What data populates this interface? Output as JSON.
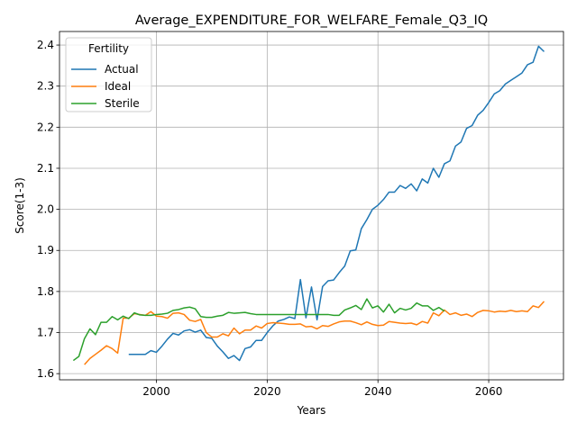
{
  "chart_data": {
    "type": "line",
    "title": "Average_EXPENDITURE_FOR_WELFARE_Female_Q3_IQ",
    "xlabel": "Years",
    "ylabel": "Score(1-3)",
    "xlim": [
      1982.5,
      2073.5
    ],
    "ylim": [
      1.585,
      2.433
    ],
    "xticks": [
      2000,
      2020,
      2040,
      2060
    ],
    "yticks": [
      1.6,
      1.7,
      1.8,
      1.9,
      2.0,
      2.1,
      2.2,
      2.3,
      2.4
    ],
    "xtick_labels": [
      "2000",
      "2020",
      "2040",
      "2060"
    ],
    "ytick_labels": [
      "1.6",
      "1.7",
      "1.8",
      "1.9",
      "2.0",
      "2.1",
      "2.2",
      "2.3",
      "2.4"
    ],
    "grid": true,
    "legend": {
      "title": "Fertility",
      "placement": "upper-left"
    },
    "series": [
      {
        "name": "Actual",
        "color": "#1f77b4",
        "x": [
          1995,
          1996,
          1997,
          1998,
          1999,
          2000,
          2001,
          2002,
          2003,
          2004,
          2005,
          2006,
          2007,
          2008,
          2009,
          2010,
          2011,
          2012,
          2013,
          2014,
          2015,
          2016,
          2017,
          2018,
          2019,
          2020,
          2021,
          2022,
          2023,
          2024,
          2025,
          2026,
          2027,
          2028,
          2029,
          2030,
          2031,
          2032,
          2033,
          2034,
          2035,
          2036,
          2037,
          2038,
          2039,
          2040,
          2041,
          2042,
          2043,
          2044,
          2045,
          2046,
          2047,
          2048,
          2049,
          2050,
          2051,
          2052,
          2053,
          2054,
          2055,
          2056,
          2057,
          2058,
          2059,
          2060,
          2061,
          2062,
          2063,
          2064,
          2065,
          2066,
          2067,
          2068,
          2069,
          2070
        ],
        "y": [
          1.647,
          1.647,
          1.647,
          1.647,
          1.656,
          1.652,
          1.667,
          1.684,
          1.698,
          1.694,
          1.704,
          1.707,
          1.701,
          1.706,
          1.688,
          1.686,
          1.667,
          1.653,
          1.637,
          1.644,
          1.632,
          1.661,
          1.665,
          1.681,
          1.681,
          1.7,
          1.716,
          1.728,
          1.732,
          1.738,
          1.734,
          1.829,
          1.736,
          1.811,
          1.731,
          1.812,
          1.826,
          1.828,
          1.846,
          1.862,
          1.899,
          1.901,
          1.953,
          1.975,
          2.0,
          2.01,
          2.024,
          2.042,
          2.042,
          2.058,
          2.051,
          2.062,
          2.045,
          2.074,
          2.064,
          2.1,
          2.078,
          2.111,
          2.118,
          2.154,
          2.164,
          2.197,
          2.204,
          2.229,
          2.241,
          2.26,
          2.281,
          2.289,
          2.305,
          2.314,
          2.323,
          2.332,
          2.352,
          2.358,
          2.397,
          2.384
        ]
      },
      {
        "name": "Ideal",
        "color": "#ff7f0e",
        "x": [
          1987,
          1988,
          1989,
          1990,
          1991,
          1992,
          1993,
          1994,
          1995,
          1996,
          1997,
          1998,
          1999,
          2000,
          2001,
          2002,
          2003,
          2004,
          2005,
          2006,
          2007,
          2008,
          2009,
          2010,
          2011,
          2012,
          2013,
          2014,
          2015,
          2016,
          2017,
          2018,
          2019,
          2020,
          2021,
          2022,
          2023,
          2024,
          2025,
          2026,
          2027,
          2028,
          2029,
          2030,
          2031,
          2032,
          2033,
          2034,
          2035,
          2036,
          2037,
          2038,
          2039,
          2040,
          2041,
          2042,
          2043,
          2044,
          2045,
          2046,
          2047,
          2048,
          2049,
          2050,
          2051,
          2052,
          2053,
          2054,
          2055,
          2056,
          2057,
          2058,
          2059,
          2060,
          2061,
          2062,
          2063,
          2064,
          2065,
          2066,
          2067,
          2068,
          2069,
          2070
        ],
        "y": [
          1.622,
          1.637,
          1.647,
          1.657,
          1.668,
          1.661,
          1.65,
          1.735,
          1.735,
          1.746,
          1.744,
          1.742,
          1.751,
          1.74,
          1.739,
          1.735,
          1.747,
          1.748,
          1.744,
          1.73,
          1.727,
          1.732,
          1.7,
          1.689,
          1.689,
          1.697,
          1.692,
          1.711,
          1.697,
          1.706,
          1.706,
          1.716,
          1.711,
          1.722,
          1.724,
          1.723,
          1.722,
          1.72,
          1.72,
          1.721,
          1.714,
          1.715,
          1.709,
          1.717,
          1.715,
          1.721,
          1.726,
          1.728,
          1.728,
          1.724,
          1.719,
          1.726,
          1.72,
          1.717,
          1.718,
          1.727,
          1.725,
          1.723,
          1.722,
          1.723,
          1.719,
          1.727,
          1.723,
          1.748,
          1.741,
          1.755,
          1.744,
          1.748,
          1.742,
          1.745,
          1.739,
          1.749,
          1.754,
          1.753,
          1.75,
          1.752,
          1.751,
          1.754,
          1.751,
          1.753,
          1.751,
          1.765,
          1.761,
          1.776
        ]
      },
      {
        "name": "Sterile",
        "color": "#2ca02c",
        "x": [
          1985,
          1986,
          1987,
          1988,
          1989,
          1990,
          1991,
          1992,
          1993,
          1994,
          1995,
          1996,
          1997,
          1998,
          1999,
          2000,
          2001,
          2002,
          2003,
          2004,
          2005,
          2006,
          2007,
          2008,
          2009,
          2010,
          2011,
          2012,
          2013,
          2014,
          2015,
          2016,
          2017,
          2018,
          2019,
          2020,
          2021,
          2022,
          2023,
          2024,
          2025,
          2026,
          2027,
          2028,
          2029,
          2030,
          2031,
          2032,
          2033,
          2034,
          2035,
          2036,
          2037,
          2038,
          2039,
          2040,
          2041,
          2042,
          2043,
          2044,
          2045,
          2046,
          2047,
          2048,
          2049,
          2050,
          2051,
          2052
        ],
        "y": [
          1.632,
          1.642,
          1.685,
          1.709,
          1.695,
          1.725,
          1.725,
          1.739,
          1.731,
          1.74,
          1.734,
          1.748,
          1.743,
          1.742,
          1.742,
          1.744,
          1.745,
          1.747,
          1.754,
          1.756,
          1.76,
          1.762,
          1.758,
          1.739,
          1.737,
          1.737,
          1.74,
          1.742,
          1.749,
          1.747,
          1.748,
          1.749,
          1.746,
          1.744,
          1.744,
          1.744,
          1.744,
          1.744,
          1.744,
          1.744,
          1.744,
          1.744,
          1.744,
          1.744,
          1.744,
          1.744,
          1.744,
          1.742,
          1.742,
          1.755,
          1.76,
          1.766,
          1.756,
          1.782,
          1.76,
          1.765,
          1.75,
          1.769,
          1.748,
          1.759,
          1.755,
          1.759,
          1.772,
          1.765,
          1.765,
          1.754,
          1.761,
          1.752
        ]
      }
    ]
  }
}
